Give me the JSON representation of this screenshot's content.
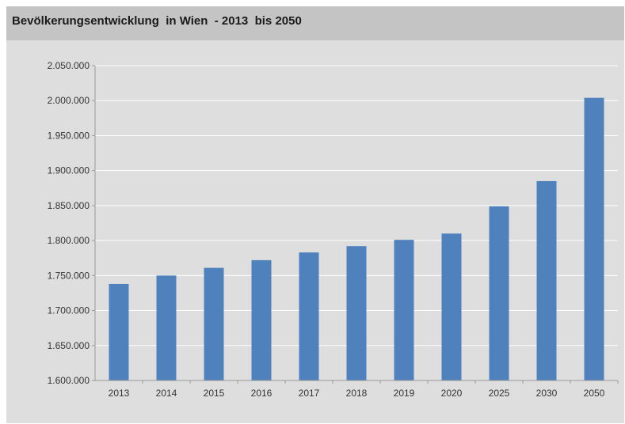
{
  "title": "Bevölkerungsentwicklung  in Wien  - 2013  bis 2050",
  "chart_data": {
    "type": "bar",
    "title": "Bevölkerungsentwicklung  in Wien  - 2013  bis 2050",
    "xlabel": "",
    "ylabel": "",
    "categories": [
      "2013",
      "2014",
      "2015",
      "2016",
      "2017",
      "2018",
      "2019",
      "2020",
      "2025",
      "2030",
      "2050"
    ],
    "values": [
      1738000,
      1750000,
      1761000,
      1772000,
      1783000,
      1792000,
      1801000,
      1810000,
      1849000,
      1885000,
      2004000
    ],
    "ylim": [
      1600000,
      2050000
    ],
    "yticks": [
      1600000,
      1650000,
      1700000,
      1750000,
      1800000,
      1850000,
      1900000,
      1950000,
      2000000,
      2050000
    ],
    "ytick_labels": [
      "1.600.000",
      "1.650.000",
      "1.700.000",
      "1.750.000",
      "1.800.000",
      "1.850.000",
      "1.900.000",
      "1.950.000",
      "2.000.000",
      "2.050.000"
    ],
    "bar_color": "#4f81bd",
    "grid": true,
    "legend": "none"
  }
}
